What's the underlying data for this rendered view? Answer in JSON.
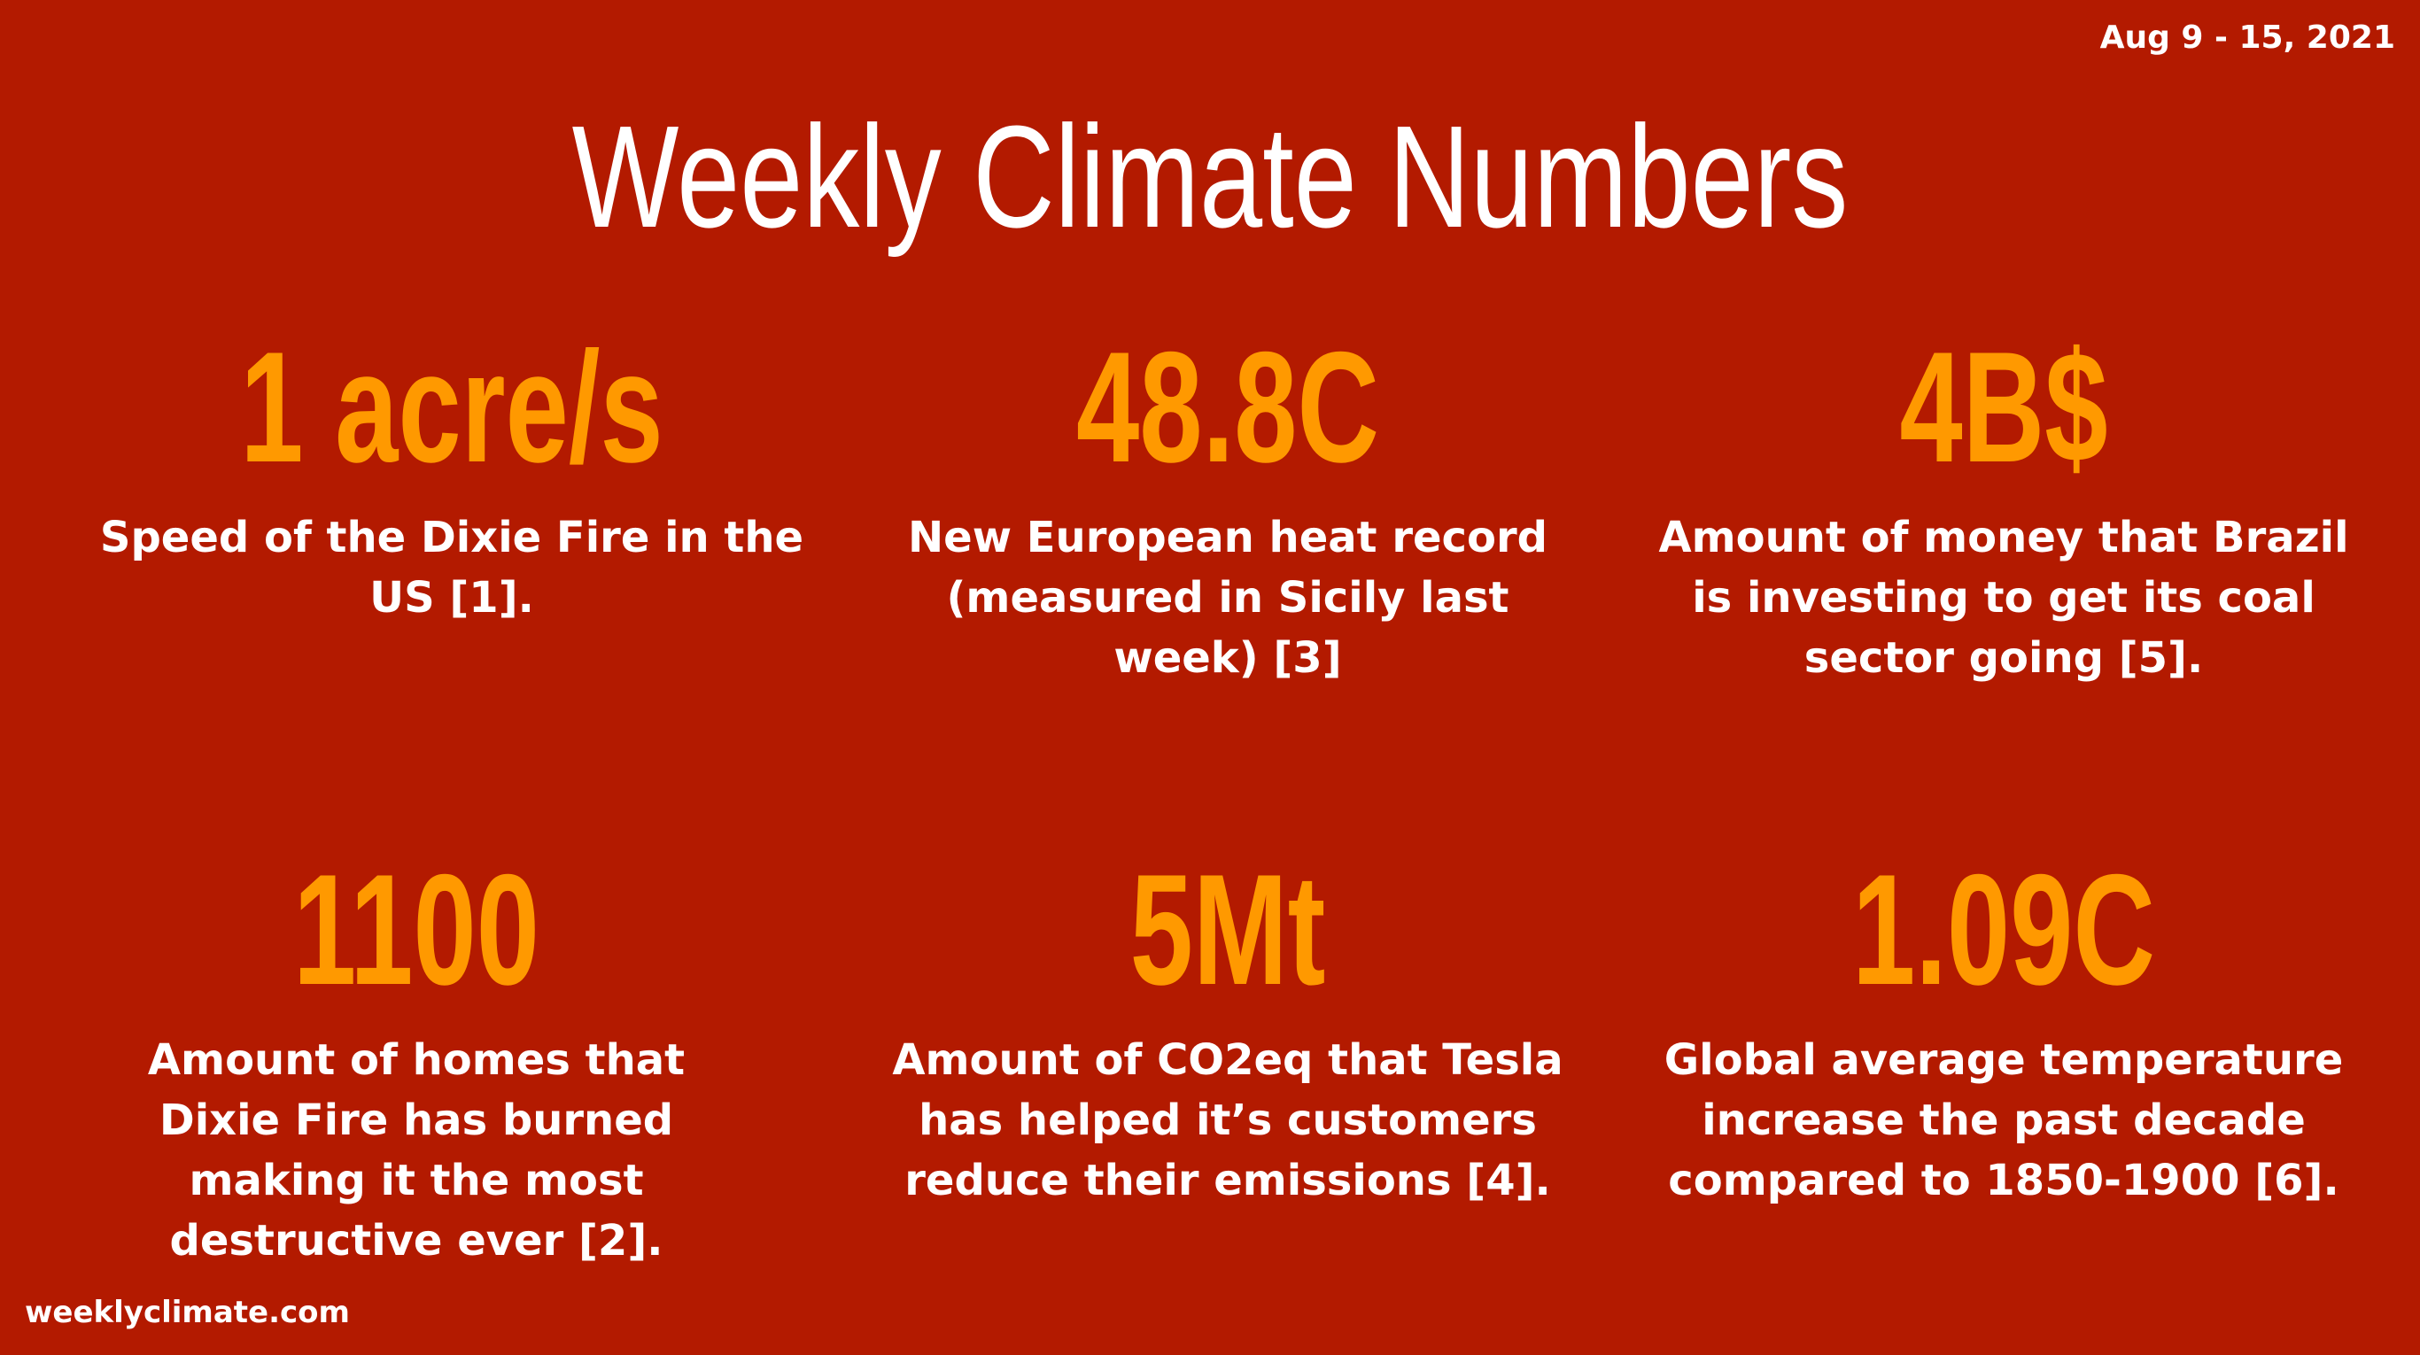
{
  "header": {
    "date_range": "Aug 9 - 15, 2021",
    "title": "Weekly Climate Numbers"
  },
  "stats": [
    {
      "value": "1 acre/s",
      "description": "Speed of the Dixie Fire in the US [1]."
    },
    {
      "value": "48.8C",
      "description": "New European heat record (measured in Sicily last week) [3]"
    },
    {
      "value": "4B$",
      "description": "Amount of money that Brazil is investing to get its coal sector going [5]."
    },
    {
      "value": "1100",
      "description": "Amount of homes that Dixie Fire has burned making it the most destructive ever [2]."
    },
    {
      "value": "5Mt",
      "description": "Amount of CO2eq that Tesla has helped it’s customers reduce their emissions [4]."
    },
    {
      "value": "1.09C",
      "description": "Global average temperature increase the past decade compared to 1850-1900 [6]."
    }
  ],
  "footer": {
    "site": "weeklyclimate.com"
  },
  "colors": {
    "background": "#b31a00",
    "accent": "#ff9900",
    "text": "#ffffff"
  }
}
